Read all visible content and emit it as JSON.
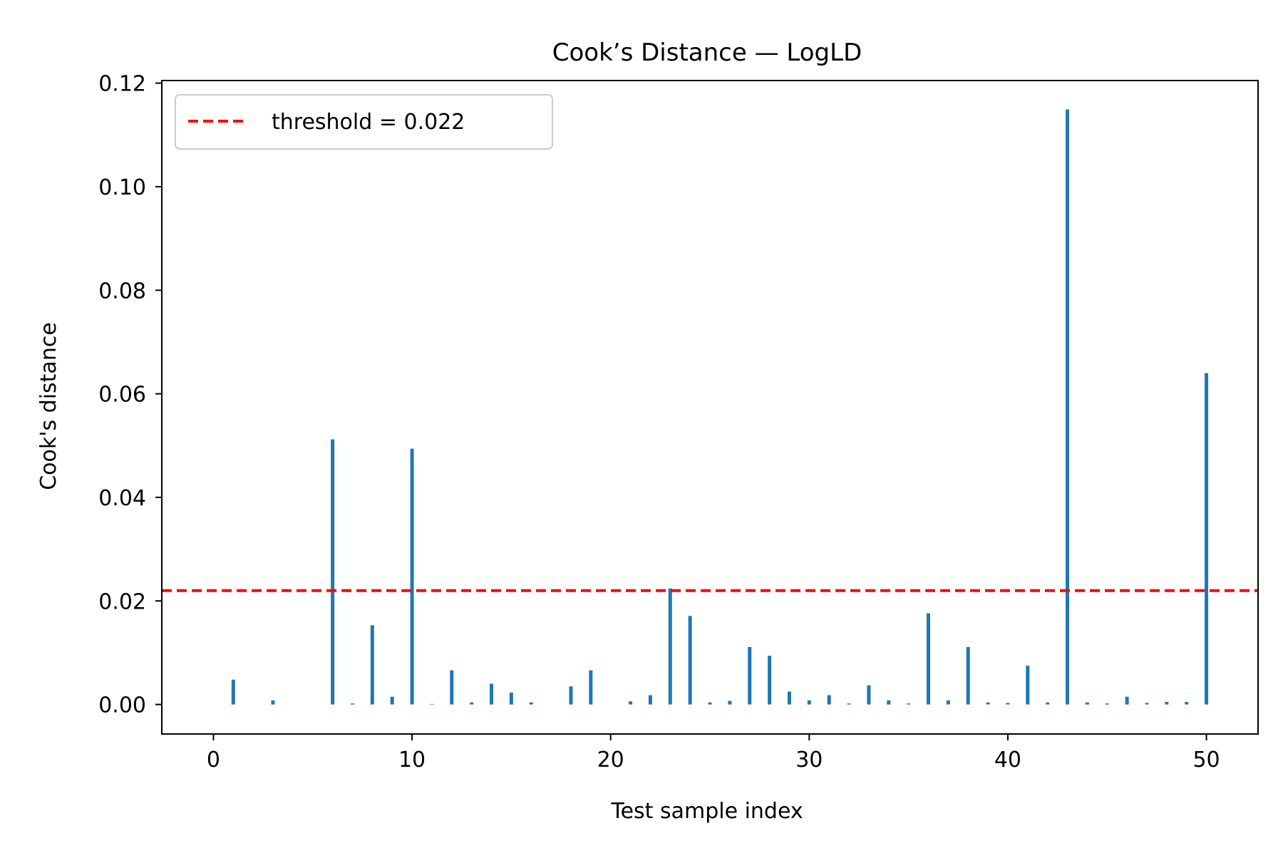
{
  "chart_data": {
    "type": "bar",
    "title": "Cook’s Distance — LogLD",
    "xlabel": "Test sample index",
    "ylabel": "Cook's distance",
    "xlim": [
      -2.6,
      52.6
    ],
    "ylim": [
      -0.0057,
      0.1205
    ],
    "xticks": [
      0,
      10,
      20,
      30,
      40,
      50
    ],
    "xtick_labels": [
      "0",
      "10",
      "20",
      "30",
      "40",
      "50"
    ],
    "yticks": [
      0.0,
      0.02,
      0.04,
      0.06,
      0.08,
      0.1,
      0.12
    ],
    "ytick_labels": [
      "0.00",
      "0.02",
      "0.04",
      "0.06",
      "0.08",
      "0.10",
      "0.12"
    ],
    "grid": false,
    "legend_position": "top-left",
    "legend": [
      {
        "label": "threshold = 0.022",
        "style": "dashed",
        "color": "#ff0000"
      }
    ],
    "threshold": 0.022,
    "bar_color": "#1f77b4",
    "x": [
      0,
      1,
      2,
      3,
      4,
      5,
      6,
      7,
      8,
      9,
      10,
      11,
      12,
      13,
      14,
      15,
      16,
      17,
      18,
      19,
      20,
      21,
      22,
      23,
      24,
      25,
      26,
      27,
      28,
      29,
      30,
      31,
      32,
      33,
      34,
      35,
      36,
      37,
      38,
      39,
      40,
      41,
      42,
      43,
      44,
      45,
      46,
      47,
      48,
      49,
      50
    ],
    "values": [
      0.0,
      0.0048,
      0.0,
      0.0008,
      0.0,
      0.0,
      0.0512,
      0.0002,
      0.0153,
      0.0015,
      0.0494,
      0.0001,
      0.0066,
      0.0004,
      0.004,
      0.0023,
      0.0004,
      0.0,
      0.0035,
      0.0066,
      0.0,
      0.0006,
      0.0018,
      0.0224,
      0.0171,
      0.0004,
      0.0007,
      0.0111,
      0.0094,
      0.0025,
      0.0008,
      0.0018,
      0.0002,
      0.0037,
      0.0008,
      0.0002,
      0.0176,
      0.0008,
      0.0111,
      0.0004,
      0.0003,
      0.0075,
      0.0004,
      0.1149,
      0.0004,
      0.0002,
      0.0015,
      0.0003,
      0.0005,
      0.0005,
      0.064
    ]
  }
}
